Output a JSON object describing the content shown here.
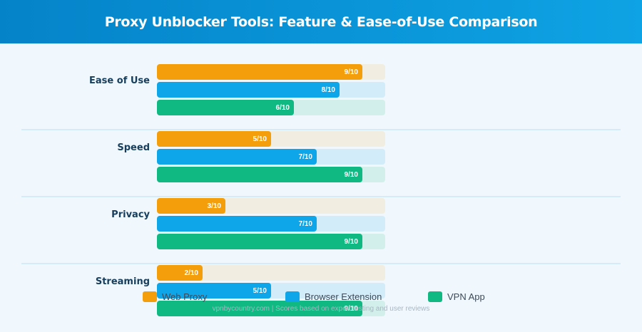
{
  "header": {
    "title": "Proxy Unblocker Tools: Feature & Ease-of-Use Comparison"
  },
  "legend": [
    {
      "label": "Web Proxy",
      "color": "#f59e0b"
    },
    {
      "label": "Browser Extension",
      "color": "#0ea5e9"
    },
    {
      "label": "VPN App",
      "color": "#10b981"
    }
  ],
  "footer": "vpnbycountry.com | Scores based on expert testing and user reviews",
  "groups": [
    {
      "label": "Ease of Use",
      "values": [
        "9/10",
        "8/10",
        "6/10"
      ]
    },
    {
      "label": "Speed",
      "values": [
        "5/10",
        "7/10",
        "9/10"
      ]
    },
    {
      "label": "Privacy",
      "values": [
        "3/10",
        "7/10",
        "9/10"
      ]
    },
    {
      "label": "Streaming",
      "values": [
        "2/10",
        "5/10",
        "9/10"
      ]
    }
  ],
  "chart_data": {
    "type": "bar",
    "orientation": "horizontal",
    "title": "Proxy Unblocker Tools: Feature & Ease-of-Use Comparison",
    "categories": [
      "Ease of Use",
      "Speed",
      "Privacy",
      "Streaming"
    ],
    "series": [
      {
        "name": "Web Proxy",
        "color": "#f59e0b",
        "values": [
          9,
          5,
          3,
          2
        ]
      },
      {
        "name": "Browser Extension",
        "color": "#0ea5e9",
        "values": [
          8,
          7,
          7,
          5
        ]
      },
      {
        "name": "VPN App",
        "color": "#10b981",
        "values": [
          6,
          9,
          9,
          9
        ]
      }
    ],
    "xlim": [
      0,
      10
    ],
    "value_format": "{v}/10",
    "legend_position": "bottom",
    "grid": false,
    "annotations": [
      "vpnbycountry.com | Scores based on expert testing and user reviews"
    ]
  }
}
